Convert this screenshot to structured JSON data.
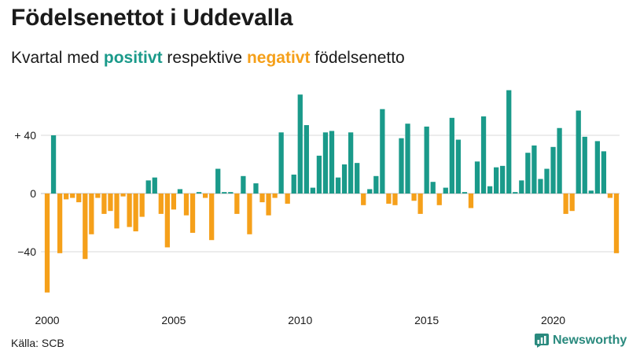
{
  "title": "Födelsenettot i Uddevalla",
  "subtitle": {
    "pre": "Kvartal med ",
    "pos": "positivt",
    "mid": " respektive ",
    "neg": "negativt",
    "post": " födelsenetto"
  },
  "source": "Källa: SCB",
  "brand": "Newsworthy",
  "colors": {
    "positive": "#1a9a8a",
    "negative": "#f5a01a",
    "grid": "#d9d9d9",
    "brand": "#2a8a7e"
  },
  "chart_data": {
    "type": "bar",
    "title": "Födelsenettot i Uddevalla",
    "xlabel": "",
    "ylabel": "",
    "ylim": [
      -72,
      72
    ],
    "yticks": [
      {
        "value": 40,
        "label": "+ 40"
      },
      {
        "value": 0,
        "label": "0"
      },
      {
        "value": -40,
        "label": "−40"
      }
    ],
    "xticks": [
      {
        "index": 0,
        "label": "2000"
      },
      {
        "index": 20,
        "label": "2005"
      },
      {
        "index": 40,
        "label": "2010"
      },
      {
        "index": 60,
        "label": "2015"
      },
      {
        "index": 80,
        "label": "2020"
      }
    ],
    "start_year": 2000,
    "values": [
      -68,
      40,
      -41,
      -4,
      -3,
      -6,
      -45,
      -28,
      -3,
      -14,
      -12,
      -24,
      -2,
      -23,
      -26,
      -16,
      9,
      11,
      -14,
      -37,
      -11,
      3,
      -15,
      -27,
      1,
      -3,
      -32,
      17,
      1,
      1,
      -14,
      12,
      -28,
      7,
      -6,
      -15,
      -3,
      42,
      -7,
      13,
      68,
      47,
      4,
      26,
      42,
      43,
      11,
      20,
      42,
      21,
      -8,
      3,
      12,
      58,
      -7,
      -8,
      38,
      48,
      -5,
      -14,
      46,
      8,
      -8,
      4,
      52,
      37,
      1,
      -10,
      22,
      53,
      5,
      18,
      19,
      71,
      1,
      9,
      28,
      33,
      10,
      17,
      32,
      45,
      -14,
      -12,
      57,
      39,
      2,
      36,
      29,
      -3,
      -41
    ]
  }
}
